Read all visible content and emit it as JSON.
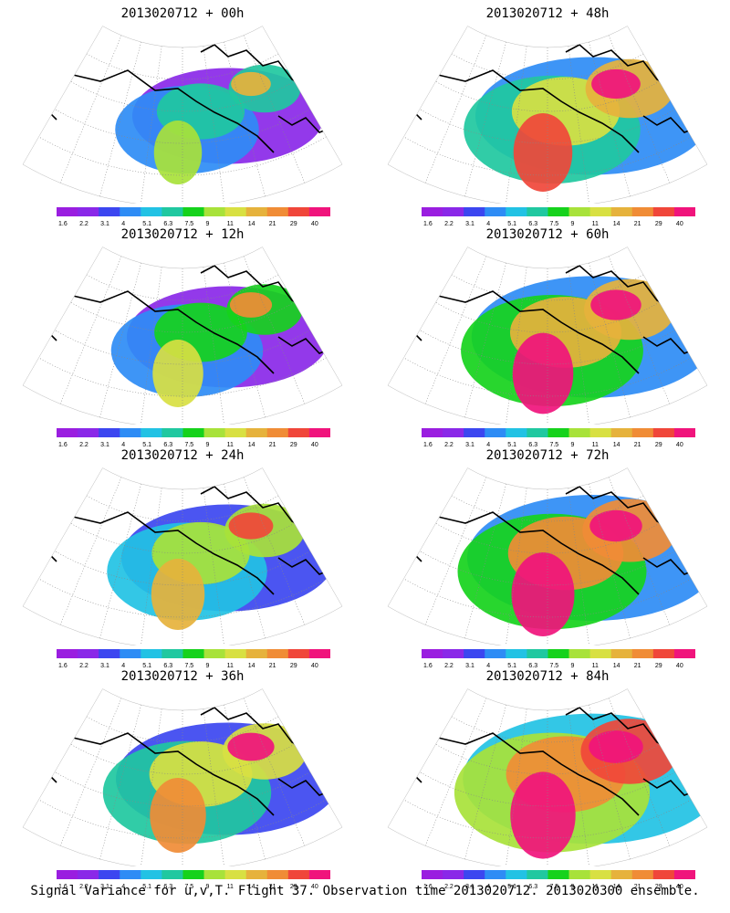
{
  "panels": [
    {
      "title": "2013020712 + 00h",
      "level": 0.15
    },
    {
      "title": "2013020712 + 12h",
      "level": 0.25
    },
    {
      "title": "2013020712 + 24h",
      "level": 0.35
    },
    {
      "title": "2013020712 + 36h",
      "level": 0.45
    },
    {
      "title": "2013020712 + 48h",
      "level": 0.55
    },
    {
      "title": "2013020712 + 60h",
      "level": 0.62
    },
    {
      "title": "2013020712 + 72h",
      "level": 0.7
    },
    {
      "title": "2013020712 + 84h",
      "level": 0.78
    }
  ],
  "colorbar": {
    "labels": [
      "1.6",
      "2.2",
      "3.1",
      "4",
      "5.1",
      "6.3",
      "7.5",
      "9",
      "11",
      "14",
      "21",
      "29",
      "40"
    ],
    "colors": [
      "#9a1ee0",
      "#8a28e8",
      "#3c46f0",
      "#2e8cf5",
      "#22c2e4",
      "#20c8a0",
      "#16d21c",
      "#a8e23a",
      "#d8e042",
      "#e6b23c",
      "#f08c36",
      "#f0463a",
      "#f0147c"
    ]
  },
  "footer": "Signal Variance for u,v,T. Flight 37. Observation time 2013020712. 2013020300 ensemble."
}
